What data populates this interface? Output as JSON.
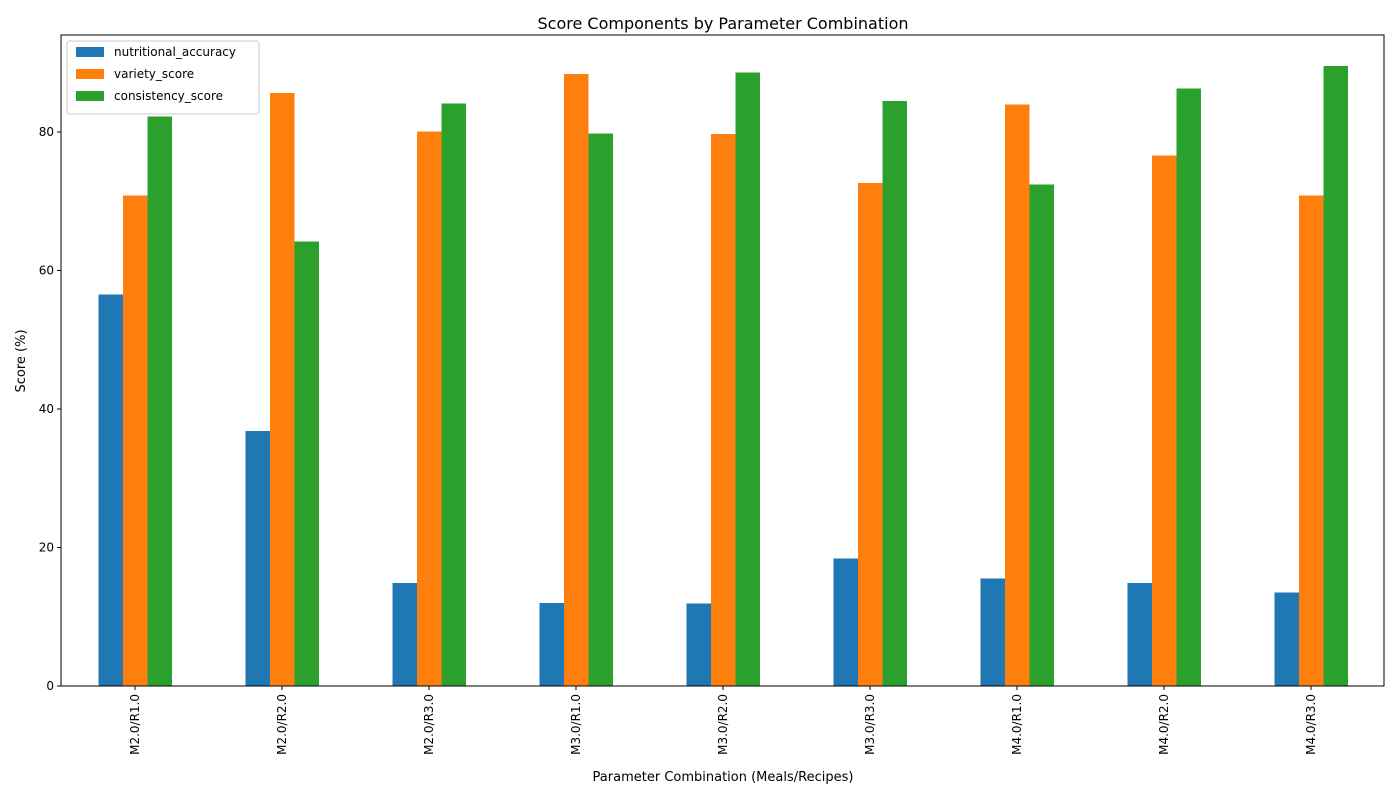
{
  "chart_data": {
    "type": "bar",
    "title": "Score Components by Parameter Combination",
    "xlabel": "Parameter Combination (Meals/Recipes)",
    "ylabel": "Score (%)",
    "categories": [
      "M2.0/R1.0",
      "M2.0/R2.0",
      "M2.0/R3.0",
      "M3.0/R1.0",
      "M3.0/R2.0",
      "M3.0/R3.0",
      "M4.0/R1.0",
      "M4.0/R2.0",
      "M4.0/R3.0"
    ],
    "series": [
      {
        "name": "nutritional_accuracy",
        "color": "#1f77b4",
        "values": [
          56.5,
          36.8,
          14.9,
          12.0,
          11.9,
          18.4,
          15.5,
          14.9,
          13.5
        ]
      },
      {
        "name": "variety_score",
        "color": "#ff7f0e",
        "values": [
          70.8,
          85.6,
          80.1,
          88.4,
          79.7,
          72.6,
          84.0,
          76.6,
          70.8
        ]
      },
      {
        "name": "consistency_score",
        "color": "#2ca02c",
        "values": [
          82.2,
          64.2,
          84.1,
          79.8,
          88.6,
          84.5,
          72.4,
          86.3,
          89.5
        ]
      }
    ],
    "ylim": [
      0,
      94.0
    ],
    "yticks": [
      0,
      20,
      40,
      60,
      80
    ],
    "grid": false,
    "legend_position": "top-left"
  }
}
